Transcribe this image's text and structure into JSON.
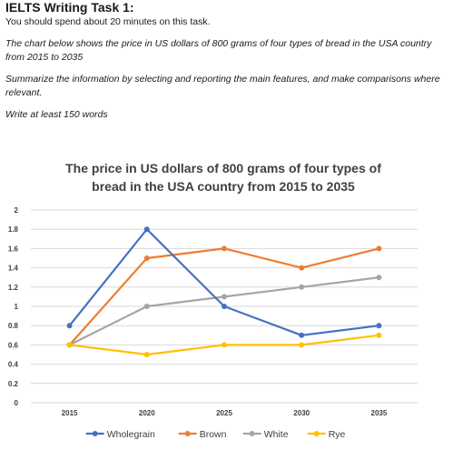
{
  "task": {
    "title": "IELTS Writing Task 1:",
    "subtitle": "You should spend about 20 minutes on this task.",
    "prompt": "The chart below shows the price in US dollars of 800 grams of four types of bread in the USA country from 2015 to 2035",
    "instruction": "Summarize the information by selecting and reporting the main features, and make comparisons where relevant.",
    "word_limit": "Write at least 150 words"
  },
  "chart_data": {
    "type": "line",
    "title": "The price in US dollars of 800 grams of four types of bread in the USA country from 2015 to 2035",
    "title_lines": [
      "The price in US dollars of 800 grams of four types of",
      "bread in the USA country from 2015 to 2035"
    ],
    "categories": [
      "2015",
      "2020",
      "2025",
      "2030",
      "2035"
    ],
    "y_ticks": [
      "0",
      "0.2",
      "0.4",
      "0.6",
      "0.8",
      "1",
      "1.2",
      "1.4",
      "1.6",
      "1.8",
      "2"
    ],
    "ylim": [
      0,
      2
    ],
    "grid": true,
    "legend_position": "bottom",
    "series": [
      {
        "name": "Wholegrain",
        "color": "#4472C4",
        "values": [
          0.8,
          1.8,
          1.0,
          0.7,
          0.8
        ]
      },
      {
        "name": "Brown",
        "color": "#ED7D31",
        "values": [
          0.6,
          1.5,
          1.6,
          1.4,
          1.6
        ]
      },
      {
        "name": "White",
        "color": "#A5A5A5",
        "values": [
          0.6,
          1.0,
          1.1,
          1.2,
          1.3
        ]
      },
      {
        "name": "Rye",
        "color": "#FFC000",
        "values": [
          0.6,
          0.5,
          0.6,
          0.6,
          0.7
        ]
      }
    ]
  }
}
